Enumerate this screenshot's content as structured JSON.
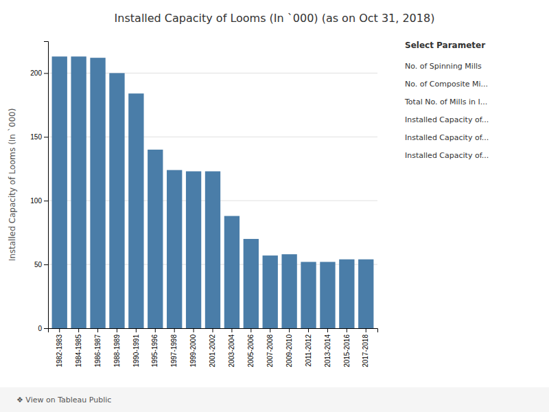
{
  "chart_data": {
    "type": "bar",
    "title": "Installed Capacity of Looms (In `000) (as on Oct 31, 2018)",
    "y_label": "Installed Capacity of Looms (In `000)",
    "categories": [
      "1982-1983",
      "1984-1985",
      "1986-1987",
      "1988-1989",
      "1990-1991",
      "1995-1996",
      "1997-1998",
      "1999-2000",
      "2001-2002",
      "2003-2004",
      "2005-2006",
      "2007-2008",
      "2009-2010",
      "2011-2012",
      "2013-2014",
      "2015-2016",
      "2017-2018"
    ],
    "values": [
      213,
      213,
      212,
      200,
      184,
      140,
      124,
      123,
      123,
      88,
      70,
      57,
      58,
      52,
      52,
      54,
      54
    ],
    "color": "#4a7da8",
    "ylim": [
      0,
      225
    ],
    "yticks": [
      0,
      50,
      100,
      150,
      200
    ],
    "grid": true,
    "annotations": [
      "Select Parameter",
      "No. of Spinning Mills",
      "No. of Composite Mi...",
      "Total No. of Mills in I...",
      "Installed Capacity of...",
      "Installed Capacity of...",
      "Installed Capacity of...",
      "❖ View on Tableau Public"
    ]
  }
}
